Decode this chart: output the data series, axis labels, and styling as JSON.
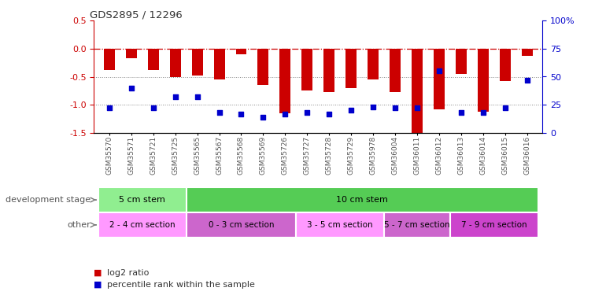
{
  "title": "GDS2895 / 12296",
  "samples": [
    "GSM35570",
    "GSM35571",
    "GSM35721",
    "GSM35725",
    "GSM35565",
    "GSM35567",
    "GSM35568",
    "GSM35569",
    "GSM35726",
    "GSM35727",
    "GSM35728",
    "GSM35729",
    "GSM35978",
    "GSM36004",
    "GSM36011",
    "GSM36012",
    "GSM36013",
    "GSM36014",
    "GSM36015",
    "GSM36016"
  ],
  "log2_ratio": [
    -0.38,
    -0.17,
    -0.38,
    -0.5,
    -0.48,
    -0.55,
    -0.1,
    -0.65,
    -1.15,
    -0.75,
    -0.78,
    -0.7,
    -0.55,
    -0.78,
    -1.55,
    -1.08,
    -0.45,
    -1.12,
    -0.58,
    -0.13
  ],
  "percentile": [
    22,
    40,
    22,
    32,
    32,
    18,
    17,
    14,
    17,
    18,
    17,
    20,
    23,
    22,
    22,
    55,
    18,
    18,
    22,
    47
  ],
  "ylim_left": [
    -1.5,
    0.5
  ],
  "ylim_right": [
    0,
    100
  ],
  "yticks_left": [
    -1.5,
    -1.0,
    -0.5,
    0.0,
    0.5
  ],
  "yticks_right": [
    0,
    25,
    50,
    75,
    100
  ],
  "development_stage_groups": [
    {
      "label": "5 cm stem",
      "start": 0,
      "end": 3,
      "color": "#90EE90"
    },
    {
      "label": "10 cm stem",
      "start": 4,
      "end": 19,
      "color": "#55CC55"
    }
  ],
  "other_groups": [
    {
      "label": "2 - 4 cm section",
      "start": 0,
      "end": 3,
      "color": "#FF99FF"
    },
    {
      "label": "0 - 3 cm section",
      "start": 4,
      "end": 8,
      "color": "#CC66CC"
    },
    {
      "label": "3 - 5 cm section",
      "start": 9,
      "end": 12,
      "color": "#FF99FF"
    },
    {
      "label": "5 - 7 cm section",
      "start": 13,
      "end": 15,
      "color": "#CC66CC"
    },
    {
      "label": "7 - 9 cm section",
      "start": 16,
      "end": 19,
      "color": "#CC44CC"
    }
  ],
  "bar_color": "#CC0000",
  "dot_color": "#0000CC",
  "bar_width": 0.5,
  "dot_size": 18,
  "hline_color": "#CC0000",
  "dotted_line_color": "#888888",
  "background_color": "#FFFFFF",
  "tick_label_color": "#555555",
  "label_row1": "development stage",
  "label_row2": "other",
  "legend_log2": "log2 ratio",
  "legend_pct": "percentile rank within the sample"
}
